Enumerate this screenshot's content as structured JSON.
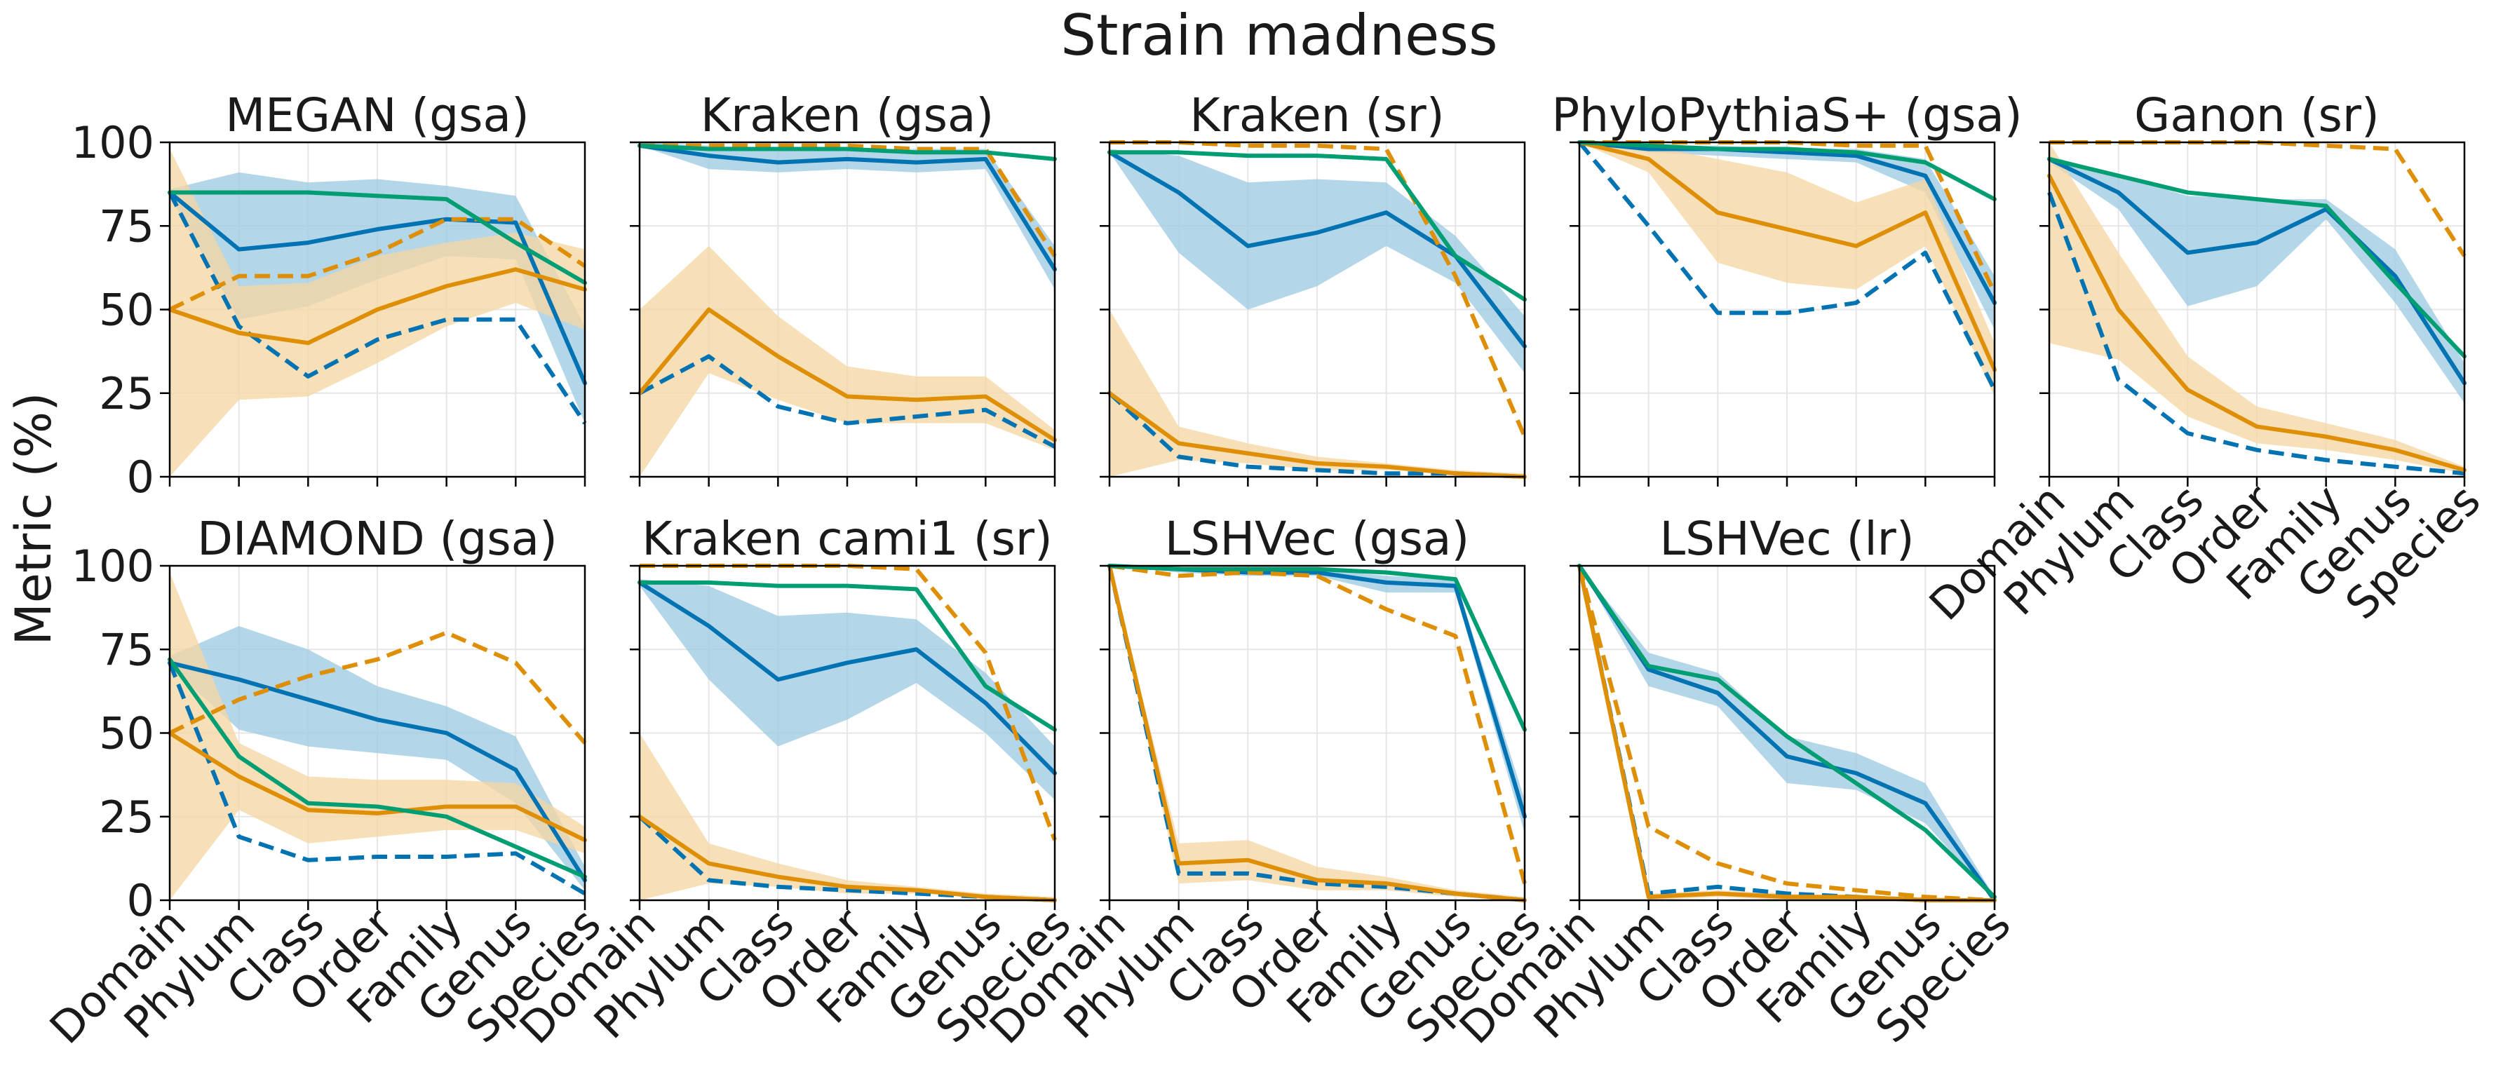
{
  "figure": {
    "title": "Strain madness",
    "ylabel": "Metric (%)"
  },
  "colors": {
    "blue": "#0173b2",
    "orange": "#de8f05",
    "green": "#029e73",
    "blue_band": "#9ecae1",
    "orange_band": "#f5d6a4"
  },
  "chart_data": {
    "type": "line",
    "categories": [
      "Domain",
      "Phylum",
      "Class",
      "Order",
      "Family",
      "Genus",
      "Species"
    ],
    "ylim": [
      0,
      100
    ],
    "yticks": [
      0,
      25,
      50,
      75,
      100
    ],
    "grid": true,
    "panels": [
      {
        "title": "MEGAN (gsa)",
        "series": [
          {
            "color": "blue",
            "style": "solid",
            "values": [
              85,
              68,
              70,
              74,
              77,
              76,
              28
            ]
          },
          {
            "color": "blue",
            "style": "dashed",
            "values": [
              85,
              45,
              30,
              41,
              47,
              47,
              16
            ]
          },
          {
            "color": "orange",
            "style": "solid",
            "values": [
              50,
              43,
              40,
              50,
              57,
              62,
              56
            ]
          },
          {
            "color": "orange",
            "style": "dashed",
            "values": [
              50,
              60,
              60,
              67,
              77,
              77,
              63
            ]
          },
          {
            "color": "green",
            "style": "solid",
            "values": [
              85,
              85,
              85,
              84,
              83,
              70,
              58
            ]
          }
        ],
        "bands": [
          {
            "color": "blue",
            "lower": [
              84,
              47,
              51,
              59,
              66,
              65,
              16
            ],
            "upper": [
              86,
              91,
              88,
              89,
              87,
              84,
              45
            ]
          },
          {
            "color": "orange",
            "lower": [
              0,
              23,
              24,
              34,
              45,
              52,
              44
            ],
            "upper": [
              98,
              57,
              58,
              66,
              70,
              73,
              68
            ]
          }
        ]
      },
      {
        "title": "Kraken (gsa)",
        "series": [
          {
            "color": "blue",
            "style": "solid",
            "values": [
              99,
              96,
              94,
              95,
              94,
              95,
              62
            ]
          },
          {
            "color": "blue",
            "style": "dashed",
            "values": [
              25,
              36,
              21,
              16,
              18,
              20,
              9
            ]
          },
          {
            "color": "orange",
            "style": "solid",
            "values": [
              25,
              50,
              36,
              24,
              23,
              24,
              11
            ]
          },
          {
            "color": "orange",
            "style": "dashed",
            "values": [
              99,
              99,
              99,
              99,
              98,
              98,
              66
            ]
          },
          {
            "color": "green",
            "style": "solid",
            "values": [
              99,
              98,
              98,
              98,
              97,
              97,
              95
            ]
          }
        ],
        "bands": [
          {
            "color": "blue",
            "lower": [
              99,
              92,
              91,
              92,
              91,
              92,
              56
            ],
            "upper": [
              100,
              99,
              98,
              98,
              98,
              98,
              69
            ]
          },
          {
            "color": "orange",
            "lower": [
              0,
              31,
              23,
              16,
              16,
              16,
              8
            ],
            "upper": [
              50,
              69,
              48,
              33,
              30,
              30,
              14
            ]
          }
        ]
      },
      {
        "title": "Kraken (sr)",
        "series": [
          {
            "color": "blue",
            "style": "solid",
            "values": [
              97,
              85,
              69,
              73,
              79,
              66,
              39
            ]
          },
          {
            "color": "blue",
            "style": "dashed",
            "values": [
              25,
              6,
              3,
              2,
              1,
              1,
              0
            ]
          },
          {
            "color": "orange",
            "style": "solid",
            "values": [
              25,
              10,
              7,
              4,
              3,
              1,
              0
            ]
          },
          {
            "color": "orange",
            "style": "dashed",
            "values": [
              100,
              100,
              99,
              99,
              98,
              60,
              12
            ]
          },
          {
            "color": "green",
            "style": "solid",
            "values": [
              97,
              97,
              96,
              96,
              95,
              66,
              53
            ]
          }
        ],
        "bands": [
          {
            "color": "blue",
            "lower": [
              97,
              67,
              50,
              57,
              69,
              58,
              31
            ],
            "upper": [
              98,
              96,
              88,
              89,
              88,
              72,
              48
            ]
          },
          {
            "color": "orange",
            "lower": [
              0,
              5,
              4,
              2,
              2,
              1,
              0
            ],
            "upper": [
              50,
              15,
              10,
              6,
              4,
              2,
              1
            ]
          }
        ]
      },
      {
        "title": "PhyloPythiaS+ (gsa)",
        "series": [
          {
            "color": "blue",
            "style": "solid",
            "values": [
              100,
              98,
              98,
              97,
              96,
              90,
              52
            ]
          },
          {
            "color": "blue",
            "style": "dashed",
            "values": [
              100,
              75,
              49,
              49,
              52,
              67,
              26
            ]
          },
          {
            "color": "orange",
            "style": "solid",
            "values": [
              100,
              95,
              79,
              74,
              69,
              79,
              32
            ]
          },
          {
            "color": "orange",
            "style": "dashed",
            "values": [
              100,
              100,
              100,
              100,
              99,
              99,
              55
            ]
          },
          {
            "color": "green",
            "style": "solid",
            "values": [
              100,
              99,
              98,
              98,
              97,
              94,
              83
            ]
          }
        ],
        "bands": [
          {
            "color": "blue",
            "lower": [
              100,
              97,
              96,
              95,
              94,
              85,
              44
            ],
            "upper": [
              100,
              99,
              99,
              98,
              98,
              95,
              60
            ]
          },
          {
            "color": "orange",
            "lower": [
              100,
              91,
              64,
              58,
              56,
              69,
              24
            ],
            "upper": [
              100,
              99,
              95,
              91,
              82,
              89,
              40
            ]
          }
        ]
      },
      {
        "title": "Ganon (sr)",
        "series": [
          {
            "color": "blue",
            "style": "solid",
            "values": [
              95,
              85,
              67,
              70,
              80,
              60,
              28
            ]
          },
          {
            "color": "blue",
            "style": "dashed",
            "values": [
              85,
              29,
              13,
              8,
              5,
              3,
              1
            ]
          },
          {
            "color": "orange",
            "style": "solid",
            "values": [
              90,
              50,
              26,
              15,
              12,
              8,
              2
            ]
          },
          {
            "color": "orange",
            "style": "dashed",
            "values": [
              100,
              100,
              100,
              100,
              99,
              98,
              66
            ]
          },
          {
            "color": "green",
            "style": "solid",
            "values": [
              95,
              90,
              85,
              83,
              81,
              58,
              36
            ]
          }
        ],
        "bands": [
          {
            "color": "blue",
            "lower": [
              94,
              80,
              51,
              57,
              77,
              52,
              22
            ],
            "upper": [
              96,
              90,
              84,
              83,
              83,
              68,
              34
            ]
          },
          {
            "color": "orange",
            "lower": [
              40,
              35,
              18,
              10,
              8,
              5,
              1
            ],
            "upper": [
              100,
              67,
              36,
              21,
              16,
              11,
              3
            ]
          }
        ]
      },
      {
        "title": "DIAMOND (gsa)",
        "series": [
          {
            "color": "blue",
            "style": "solid",
            "values": [
              71,
              66,
              60,
              54,
              50,
              39,
              6
            ]
          },
          {
            "color": "blue",
            "style": "dashed",
            "values": [
              71,
              19,
              12,
              13,
              13,
              14,
              2
            ]
          },
          {
            "color": "orange",
            "style": "solid",
            "values": [
              50,
              37,
              27,
              26,
              28,
              28,
              18
            ]
          },
          {
            "color": "orange",
            "style": "dashed",
            "values": [
              50,
              60,
              67,
              72,
              80,
              71,
              47
            ]
          },
          {
            "color": "green",
            "style": "solid",
            "values": [
              72,
              43,
              29,
              28,
              25,
              16,
              7
            ]
          }
        ],
        "bands": [
          {
            "color": "blue",
            "lower": [
              70,
              51,
              46,
              44,
              42,
              29,
              3
            ],
            "upper": [
              73,
              82,
              75,
              64,
              58,
              49,
              10
            ]
          },
          {
            "color": "orange",
            "lower": [
              0,
              27,
              17,
              19,
              21,
              21,
              14
            ],
            "upper": [
              98,
              47,
              37,
              36,
              36,
              35,
              22
            ]
          }
        ]
      },
      {
        "title": "Kraken cami1 (sr)",
        "series": [
          {
            "color": "blue",
            "style": "solid",
            "values": [
              95,
              82,
              66,
              71,
              75,
              59,
              38
            ]
          },
          {
            "color": "blue",
            "style": "dashed",
            "values": [
              25,
              6,
              4,
              3,
              2,
              1,
              0
            ]
          },
          {
            "color": "orange",
            "style": "solid",
            "values": [
              25,
              11,
              7,
              4,
              3,
              1,
              0
            ]
          },
          {
            "color": "orange",
            "style": "dashed",
            "values": [
              100,
              100,
              100,
              100,
              99,
              74,
              18
            ]
          },
          {
            "color": "green",
            "style": "solid",
            "values": [
              95,
              95,
              94,
              94,
              93,
              64,
              51
            ]
          }
        ],
        "bands": [
          {
            "color": "blue",
            "lower": [
              94,
              66,
              46,
              54,
              65,
              50,
              30
            ],
            "upper": [
              96,
              94,
              85,
              86,
              84,
              68,
              46
            ]
          },
          {
            "color": "orange",
            "lower": [
              0,
              5,
              4,
              2,
              2,
              1,
              0
            ],
            "upper": [
              50,
              17,
              11,
              6,
              4,
              2,
              1
            ]
          }
        ]
      },
      {
        "title": "LSHVec (gsa)",
        "series": [
          {
            "color": "blue",
            "style": "solid",
            "values": [
              100,
              99,
              98,
              98,
              95,
              94,
              25
            ]
          },
          {
            "color": "blue",
            "style": "dashed",
            "values": [
              100,
              8,
              8,
              5,
              4,
              2,
              0
            ]
          },
          {
            "color": "orange",
            "style": "solid",
            "values": [
              100,
              11,
              12,
              6,
              5,
              2,
              0
            ]
          },
          {
            "color": "orange",
            "style": "dashed",
            "values": [
              100,
              97,
              98,
              97,
              87,
              79,
              5
            ]
          },
          {
            "color": "green",
            "style": "solid",
            "values": [
              100,
              99,
              99,
              99,
              98,
              96,
              51
            ]
          }
        ],
        "bands": [
          {
            "color": "blue",
            "lower": [
              100,
              98,
              97,
              97,
              92,
              92,
              20
            ],
            "upper": [
              100,
              99,
              99,
              99,
              97,
              96,
              30
            ]
          },
          {
            "color": "orange",
            "lower": [
              100,
              5,
              6,
              3,
              3,
              1,
              0
            ],
            "upper": [
              100,
              17,
              18,
              10,
              7,
              3,
              1
            ]
          }
        ]
      },
      {
        "title": "LSHVec (lr)",
        "series": [
          {
            "color": "blue",
            "style": "solid",
            "values": [
              100,
              69,
              62,
              43,
              38,
              29,
              0
            ]
          },
          {
            "color": "blue",
            "style": "dashed",
            "values": [
              100,
              2,
              4,
              2,
              1,
              0,
              0
            ]
          },
          {
            "color": "orange",
            "style": "solid",
            "values": [
              100,
              1,
              2,
              1,
              1,
              0,
              0
            ]
          },
          {
            "color": "orange",
            "style": "dashed",
            "values": [
              100,
              22,
              11,
              5,
              3,
              1,
              0
            ]
          },
          {
            "color": "green",
            "style": "solid",
            "values": [
              100,
              70,
              66,
              49,
              35,
              21,
              1
            ]
          }
        ],
        "bands": [
          {
            "color": "blue",
            "lower": [
              100,
              64,
              58,
              35,
              33,
              23,
              0
            ],
            "upper": [
              100,
              74,
              68,
              49,
              44,
              35,
              1
            ]
          },
          {
            "color": "orange",
            "lower": [
              100,
              0,
              1,
              0,
              0,
              0,
              0
            ],
            "upper": [
              100,
              2,
              3,
              2,
              1,
              1,
              0
            ]
          }
        ]
      }
    ]
  }
}
